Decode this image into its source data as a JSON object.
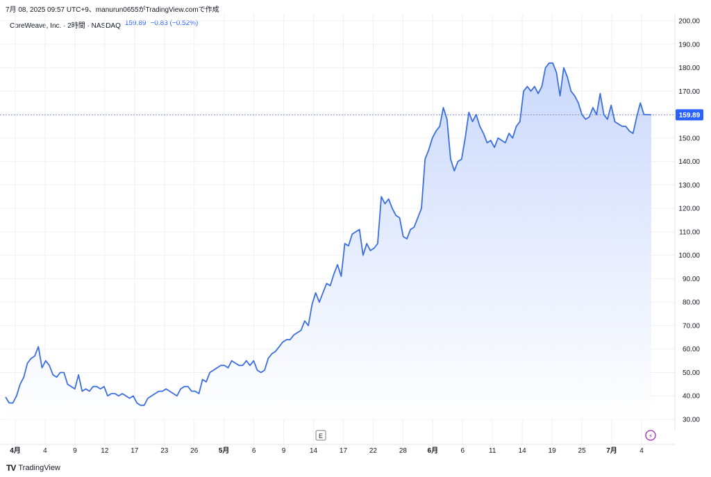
{
  "attribution": "7月 08, 2025 09:57 UTC+9、manurun0655がTradingView.comで作成",
  "legend": {
    "symbol": "CoreWeave, Inc. · 2時間 · NASDAQ",
    "last": "159.89",
    "change": "−0.83 (−0.52%)"
  },
  "brand": {
    "icon": "TV",
    "name": "TradingView"
  },
  "earnings_marker": "E",
  "lightning_glyph": "⚡",
  "colors": {
    "line": "#3a6ee0",
    "fill_top": "#c7d6fb",
    "fill_bottom": "#ffffff",
    "price_tag": "#2962ff",
    "grid": "#eef0f4",
    "lightning": "#9c27b0"
  },
  "chart_data": {
    "type": "area",
    "title": "",
    "xlabel": "",
    "ylabel": "",
    "ylim": [
      20,
      200
    ],
    "y_ticks": [
      "200.00",
      "190.00",
      "180.00",
      "170.00",
      "160.00",
      "150.00",
      "140.00",
      "130.00",
      "120.00",
      "110.00",
      "100.00",
      "90.00",
      "80.00",
      "70.00",
      "60.00",
      "50.00",
      "40.00",
      "30.00"
    ],
    "x_ticks": [
      "4月",
      "4",
      "9",
      "12",
      "17",
      "23",
      "26",
      "5月",
      "6",
      "9",
      "14",
      "17",
      "22",
      "28",
      "6月",
      "6",
      "11",
      "14",
      "19",
      "25",
      "7月",
      "4"
    ],
    "last_price_label": "159.89",
    "last_price": 159.89,
    "grid": true,
    "series": [
      {
        "values": [
          39.5,
          37,
          37,
          40,
          45,
          48,
          54,
          56,
          57,
          61,
          52,
          55,
          53,
          49,
          48,
          50,
          50,
          45,
          44,
          43,
          49,
          42,
          43,
          42,
          44,
          44,
          43,
          44,
          40,
          41,
          41,
          40,
          41,
          40,
          39,
          40,
          37,
          36,
          36,
          39,
          40,
          41,
          42,
          42,
          43,
          42,
          41,
          40,
          43,
          44,
          44,
          42,
          42,
          41,
          47,
          46,
          50,
          51,
          52,
          53,
          53,
          52,
          55,
          54,
          53,
          53,
          55,
          53,
          55,
          51,
          50,
          51,
          56,
          58,
          59,
          61,
          63,
          64,
          64,
          66,
          67,
          68,
          72,
          70,
          79,
          84,
          80,
          84,
          88,
          87,
          92,
          96,
          91,
          105,
          104,
          109,
          110,
          111,
          100,
          105,
          102,
          103,
          105,
          125,
          122,
          124,
          120,
          117,
          116,
          108,
          107,
          111,
          112,
          116,
          120,
          141,
          145,
          150,
          153,
          155,
          163,
          158,
          141,
          136,
          140,
          141,
          150,
          161,
          157,
          160,
          155,
          152,
          148,
          149,
          146,
          150,
          149,
          148,
          152,
          150,
          155,
          157,
          170,
          172,
          170,
          172,
          169,
          172,
          180,
          182,
          182,
          178,
          168,
          180,
          176,
          170,
          168,
          165,
          160,
          158,
          159,
          163,
          160,
          169,
          160,
          158,
          164,
          157,
          156,
          155,
          155,
          153,
          152,
          159,
          165,
          160,
          160,
          159.89
        ]
      }
    ]
  }
}
